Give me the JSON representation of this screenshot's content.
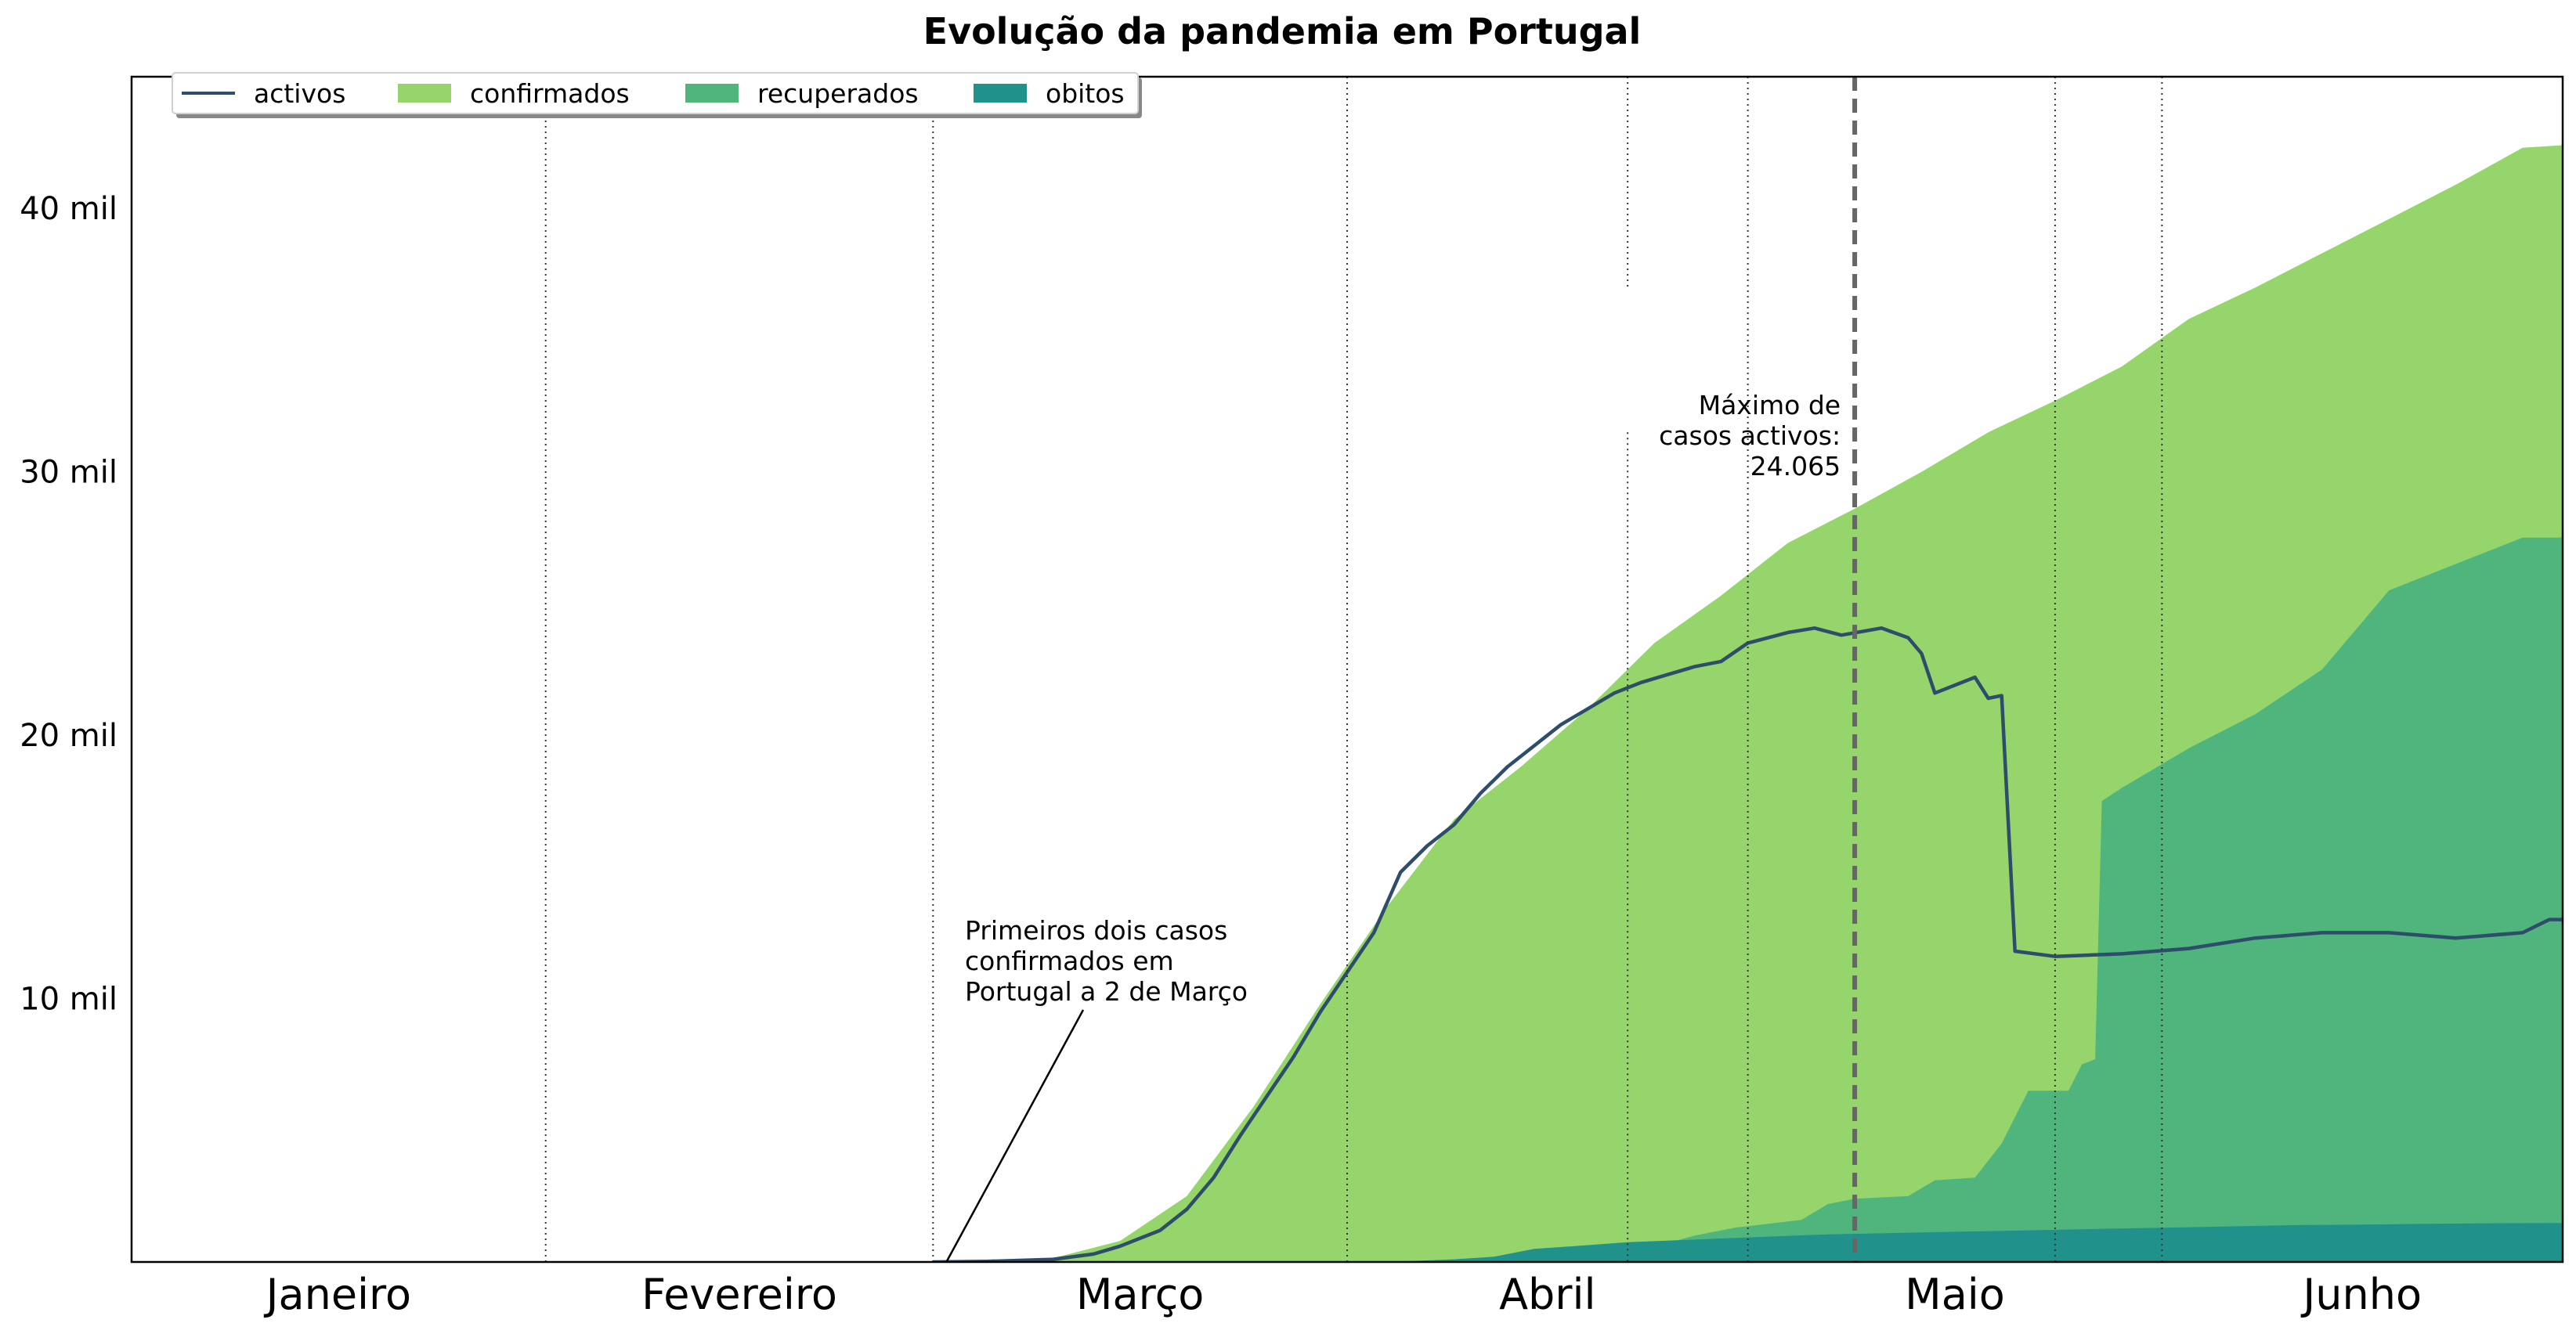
{
  "chart_data": {
    "type": "area",
    "title": "Evolução da pandemia em Portugal",
    "xlabel": "",
    "ylabel": "",
    "x_unit": "day_of_year_2020",
    "xlim": [
      1,
      183
    ],
    "ylim": [
      0,
      45000
    ],
    "y_ticks": [
      10000,
      20000,
      30000,
      40000
    ],
    "y_tick_labels": [
      "10 mil",
      "20 mil",
      "30 mil",
      "40 mil"
    ],
    "months": [
      {
        "label": "Janeiro",
        "start": 1,
        "end": 32
      },
      {
        "label": "Fevereiro",
        "start": 32,
        "end": 61
      },
      {
        "label": "Março",
        "start": 61,
        "end": 92
      },
      {
        "label": "Abril",
        "start": 92,
        "end": 122
      },
      {
        "label": "Maio",
        "start": 122,
        "end": 153
      },
      {
        "label": "Junho",
        "start": 153,
        "end": 183
      }
    ],
    "month_boundaries": [
      32,
      61,
      92,
      122,
      153
    ],
    "grid": false,
    "legend_position": "top-left",
    "legend": [
      {
        "name": "activos",
        "kind": "line",
        "color": "#2d4d6b"
      },
      {
        "name": "confirmados",
        "kind": "area",
        "color": "#95d56b"
      },
      {
        "name": "recuperados",
        "kind": "area",
        "color": "#4fb57c"
      },
      {
        "name": "obitos",
        "kind": "area",
        "color": "#21918c"
      }
    ],
    "series": [
      {
        "name": "confirmados",
        "kind": "area",
        "color": "#95d56b",
        "points": [
          [
            61,
            0
          ],
          [
            70,
            150
          ],
          [
            75,
            800
          ],
          [
            80,
            2500
          ],
          [
            85,
            5900
          ],
          [
            90,
            9800
          ],
          [
            95,
            13500
          ],
          [
            100,
            16800
          ],
          [
            105,
            18800
          ],
          [
            110,
            21000
          ],
          [
            115,
            23500
          ],
          [
            120,
            25300
          ],
          [
            125,
            27300
          ],
          [
            130,
            28600
          ],
          [
            135,
            30000
          ],
          [
            140,
            31500
          ],
          [
            145,
            32700
          ],
          [
            150,
            34000
          ],
          [
            155,
            35800
          ],
          [
            160,
            37000
          ],
          [
            165,
            38300
          ],
          [
            170,
            39600
          ],
          [
            175,
            40900
          ],
          [
            180,
            42300
          ],
          [
            183,
            42400
          ]
        ]
      },
      {
        "name": "recuperados",
        "kind": "area",
        "color": "#4fb57c",
        "points": [
          [
            105,
            0
          ],
          [
            110,
            100
          ],
          [
            113,
            300
          ],
          [
            118,
            1000
          ],
          [
            121,
            1300
          ],
          [
            126,
            1600
          ],
          [
            128,
            2200
          ],
          [
            130,
            2400
          ],
          [
            134,
            2500
          ],
          [
            136,
            3100
          ],
          [
            139,
            3200
          ],
          [
            141,
            4500
          ],
          [
            143,
            6500
          ],
          [
            146,
            6500
          ],
          [
            147,
            7500
          ],
          [
            148,
            7700
          ],
          [
            148.5,
            17500
          ],
          [
            150,
            18000
          ],
          [
            155,
            19500
          ],
          [
            160,
            20800
          ],
          [
            165,
            22500
          ],
          [
            170,
            25500
          ],
          [
            175,
            26500
          ],
          [
            180,
            27500
          ],
          [
            183,
            27500
          ]
        ]
      },
      {
        "name": "obitos",
        "kind": "area",
        "color": "#21918c",
        "points": [
          [
            95,
            0
          ],
          [
            100,
            100
          ],
          [
            103,
            200
          ],
          [
            106,
            500
          ],
          [
            109,
            600
          ],
          [
            113,
            750
          ],
          [
            118,
            850
          ],
          [
            123,
            950
          ],
          [
            128,
            1050
          ],
          [
            133,
            1100
          ],
          [
            138,
            1150
          ],
          [
            143,
            1200
          ],
          [
            148,
            1250
          ],
          [
            153,
            1300
          ],
          [
            158,
            1350
          ],
          [
            163,
            1400
          ],
          [
            168,
            1420
          ],
          [
            173,
            1450
          ],
          [
            178,
            1470
          ],
          [
            183,
            1480
          ]
        ]
      },
      {
        "name": "activos",
        "kind": "line",
        "color": "#2d4d6b",
        "points": [
          [
            61,
            0
          ],
          [
            65,
            20
          ],
          [
            70,
            100
          ],
          [
            73,
            300
          ],
          [
            75,
            600
          ],
          [
            78,
            1200
          ],
          [
            80,
            2000
          ],
          [
            82,
            3200
          ],
          [
            84,
            4800
          ],
          [
            86,
            6300
          ],
          [
            88,
            7800
          ],
          [
            90,
            9500
          ],
          [
            92,
            11000
          ],
          [
            94,
            12500
          ],
          [
            96,
            14800
          ],
          [
            98,
            15800
          ],
          [
            100,
            16600
          ],
          [
            102,
            17800
          ],
          [
            104,
            18800
          ],
          [
            106,
            19600
          ],
          [
            108,
            20400
          ],
          [
            110,
            21000
          ],
          [
            112,
            21600
          ],
          [
            114,
            22000
          ],
          [
            116,
            22300
          ],
          [
            118,
            22600
          ],
          [
            120,
            22800
          ],
          [
            122,
            23500
          ],
          [
            125,
            23900
          ],
          [
            127,
            24065
          ],
          [
            129,
            23800
          ],
          [
            132,
            24065
          ],
          [
            134,
            23700
          ],
          [
            135,
            23100
          ],
          [
            136,
            21600
          ],
          [
            139,
            22200
          ],
          [
            140,
            21400
          ],
          [
            141,
            21500
          ],
          [
            142,
            11800
          ],
          [
            145,
            11600
          ],
          [
            150,
            11700
          ],
          [
            155,
            11900
          ],
          [
            160,
            12300
          ],
          [
            165,
            12500
          ],
          [
            170,
            12500
          ],
          [
            175,
            12300
          ],
          [
            180,
            12500
          ],
          [
            182,
            13000
          ],
          [
            183,
            13000
          ]
        ]
      }
    ],
    "annotations": [
      {
        "lines": [
          "Primeiros dois casos",
          "confirmados em",
          "Portugal a 2 de Março"
        ],
        "x": 62,
        "y": 0
      },
      {
        "lines": [
          "Máximo de",
          "casos activos:",
          "24.065"
        ],
        "x": 130,
        "y": 24065
      }
    ],
    "max_active_day": 130,
    "extra_dotted_lines": [
      113,
      145
    ]
  }
}
